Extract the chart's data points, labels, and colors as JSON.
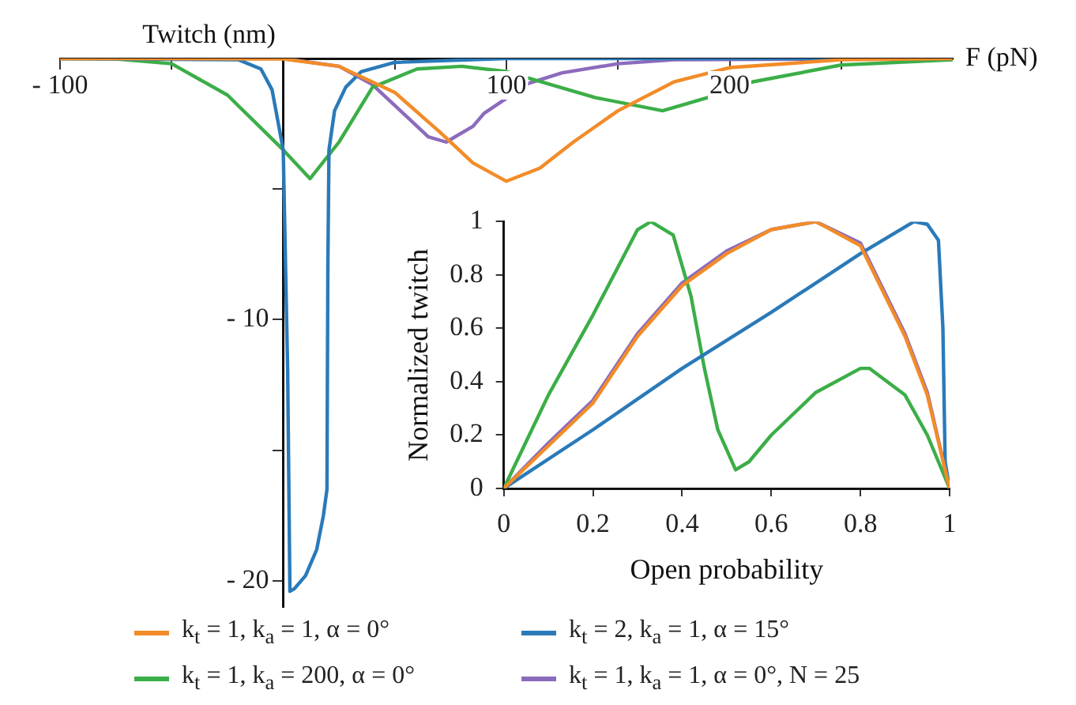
{
  "chart_data": [
    {
      "type": "line",
      "xlabel": "F (pN)",
      "ylabel": "Twitch (nm)",
      "xlim": [
        -100,
        300
      ],
      "ylim": [
        -21,
        0
      ],
      "xticks": [
        {
          "value": -100,
          "label": "- 100"
        },
        {
          "value": -50,
          "label": null
        },
        {
          "value": 50,
          "label": null
        },
        {
          "value": 100,
          "label": "100"
        },
        {
          "value": 150,
          "label": null
        },
        {
          "value": 200,
          "label": "200"
        },
        {
          "value": 250,
          "label": null
        }
      ],
      "yticks": [
        {
          "value": -5,
          "label": null
        },
        {
          "value": -10,
          "label": "- 10"
        },
        {
          "value": -15,
          "label": null
        },
        {
          "value": -20,
          "label": "- 20"
        }
      ],
      "grid": false,
      "marker": "none",
      "line_style": "solid",
      "legend": "bottom",
      "series": [
        {
          "name": "k$_{t}$ = 1, k$_{a}$ = 1, α = 0°",
          "color": "#f28c28",
          "x": [
            -100,
            0,
            25,
            50,
            70,
            85,
            100,
            115,
            130,
            150,
            175,
            200,
            250,
            300
          ],
          "values": [
            0,
            -0.02,
            -0.3,
            -1.3,
            -2.8,
            -4.0,
            -4.7,
            -4.2,
            -3.2,
            -2.0,
            -0.9,
            -0.35,
            -0.05,
            0
          ]
        },
        {
          "name": "k$_{t}$ = 2, k$_{a}$ = 1, α = 15°",
          "color": "#2a7ab9",
          "x": [
            -100,
            -20,
            -10,
            -5,
            0,
            2,
            3,
            5,
            10,
            15,
            18,
            19.6,
            20,
            20.5,
            23,
            28,
            35,
            50,
            100,
            300
          ],
          "values": [
            0,
            -0.05,
            -0.4,
            -1.2,
            -3.5,
            -12,
            -20.4,
            -20.3,
            -19.8,
            -18.8,
            -17.5,
            -16.5,
            -8,
            -3.5,
            -2,
            -1.1,
            -0.5,
            -0.15,
            0,
            0
          ]
        },
        {
          "name": "k$_{t}$ = 1, k$_{a}$ = 200, α = 0°",
          "color": "#3cae48",
          "x": [
            -100,
            -75,
            -50,
            -25,
            0,
            12,
            25,
            40,
            60,
            80,
            100,
            120,
            140,
            170,
            190,
            210,
            250,
            300
          ],
          "values": [
            0,
            -0.02,
            -0.2,
            -1.4,
            -3.5,
            -4.6,
            -3.2,
            -1.1,
            -0.4,
            -0.3,
            -0.5,
            -1.0,
            -1.5,
            -2.0,
            -1.5,
            -0.9,
            -0.25,
            -0.05
          ]
        },
        {
          "name": "k$_{t}$ = 1, k$_{a}$ = 1, α = 0°, N = 25",
          "color": "#8c6bbd",
          "x": [
            -100,
            0,
            25,
            40,
            55,
            65,
            73,
            85,
            90,
            110,
            125,
            150,
            175,
            300
          ],
          "values": [
            0,
            0,
            -0.3,
            -1.0,
            -2.2,
            -3.0,
            -3.2,
            -2.6,
            -2.1,
            -0.95,
            -0.55,
            -0.2,
            -0.05,
            0
          ]
        }
      ]
    },
    {
      "type": "line",
      "xlabel": "Open probability",
      "ylabel": "Normalized twitch",
      "xlim": [
        0,
        1
      ],
      "ylim": [
        0,
        1
      ],
      "xticks": [
        0,
        0.2,
        0.4,
        0.6,
        0.8,
        1
      ],
      "yticks": [
        0,
        0.2,
        0.4,
        0.6,
        0.8,
        1
      ],
      "grid": false,
      "marker": "none",
      "line_style": "solid",
      "series": [
        {
          "color": "#f28c28",
          "x": [
            0,
            0.1,
            0.2,
            0.3,
            0.4,
            0.5,
            0.6,
            0.7,
            0.8,
            0.9,
            0.95,
            1
          ],
          "values": [
            0,
            0.16,
            0.32,
            0.57,
            0.76,
            0.88,
            0.97,
            1,
            0.91,
            0.57,
            0.35,
            0
          ]
        },
        {
          "color": "#2a7ab9",
          "x": [
            0,
            0.2,
            0.4,
            0.6,
            0.8,
            0.9,
            0.92,
            0.95,
            0.975,
            0.985,
            0.99,
            1
          ],
          "values": [
            0,
            0.22,
            0.45,
            0.66,
            0.88,
            0.98,
            1,
            0.99,
            0.93,
            0.6,
            0.1,
            0
          ]
        },
        {
          "color": "#3cae48",
          "x": [
            0,
            0.1,
            0.2,
            0.3,
            0.33,
            0.38,
            0.42,
            0.45,
            0.48,
            0.52,
            0.55,
            0.6,
            0.7,
            0.8,
            0.82,
            0.9,
            0.95,
            1
          ],
          "values": [
            0,
            0.35,
            0.65,
            0.97,
            1,
            0.95,
            0.72,
            0.45,
            0.22,
            0.07,
            0.1,
            0.2,
            0.36,
            0.45,
            0.45,
            0.35,
            0.2,
            0
          ]
        },
        {
          "color": "#8c6bbd",
          "x": [
            0,
            0.1,
            0.2,
            0.3,
            0.4,
            0.5,
            0.6,
            0.7,
            0.8,
            0.9,
            0.95,
            1
          ],
          "values": [
            0,
            0.17,
            0.33,
            0.58,
            0.77,
            0.89,
            0.97,
            1,
            0.92,
            0.58,
            0.36,
            0
          ]
        }
      ]
    }
  ]
}
